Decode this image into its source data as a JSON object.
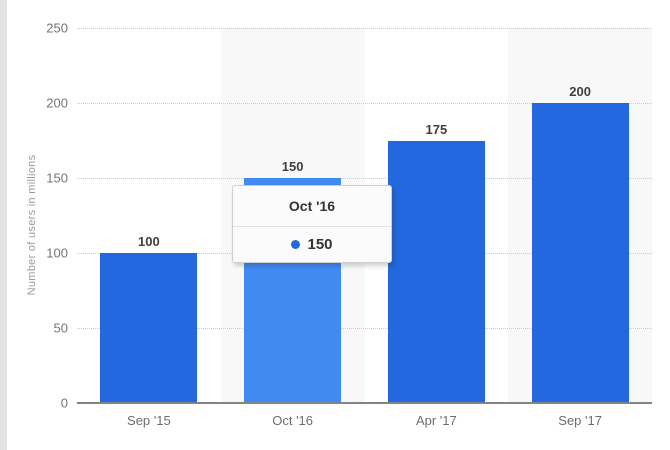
{
  "chart_data": {
    "type": "bar",
    "title": "",
    "categories": [
      "Sep '15",
      "Oct '16",
      "Apr '17",
      "Sep '17"
    ],
    "values": [
      100,
      150,
      175,
      200
    ],
    "value_labels": [
      "100",
      "150",
      "175",
      "200"
    ],
    "xlabel": "",
    "ylabel": "Number of users in millions",
    "ylim": [
      0,
      250
    ],
    "yticks": [
      250,
      200,
      150,
      100,
      50,
      0
    ],
    "grid": "horizontal dotted",
    "legend": "none",
    "plot_bands": "alternating vertical category bands",
    "highlighted_index": 1,
    "colors": {
      "bar": "#2368de",
      "bar_hover": "#418af2",
      "band": "#f8f8f8",
      "gridline": "#cccccc",
      "axis_line": "#848484"
    }
  },
  "tooltip": {
    "title": "Oct '16",
    "value": "150",
    "marker_color": "#2368de"
  }
}
